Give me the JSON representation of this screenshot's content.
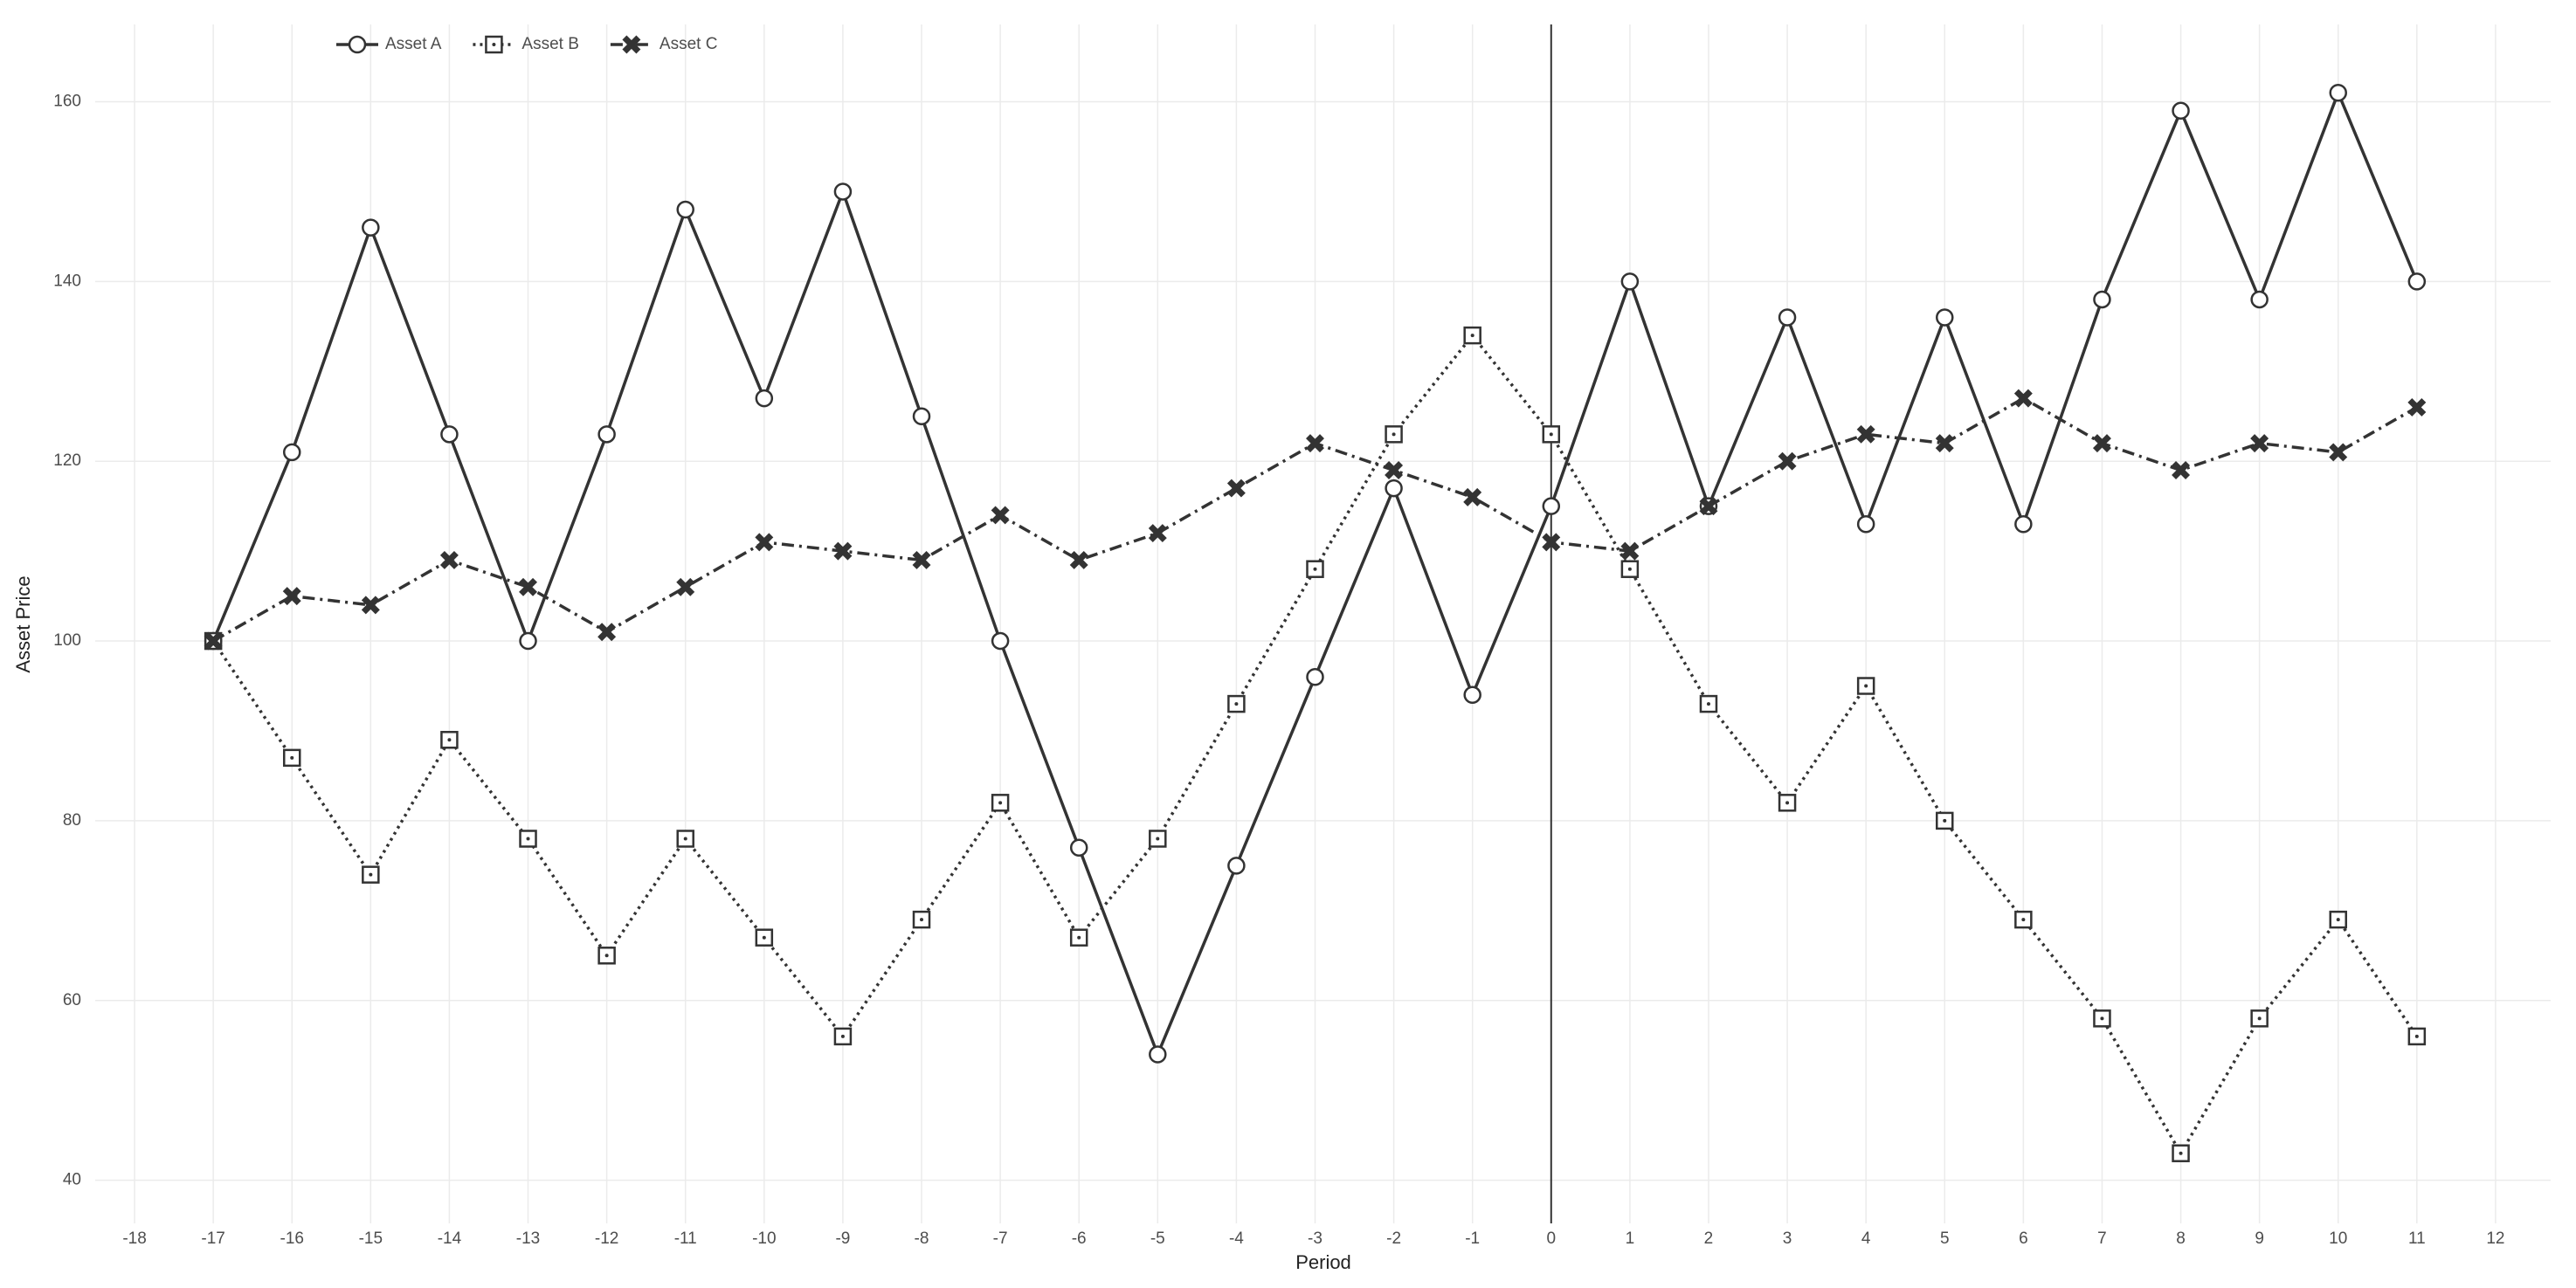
{
  "chart_data": {
    "type": "line",
    "x_label": "Period",
    "y_label": "Asset Price",
    "x": [
      -17,
      -16,
      -15,
      -14,
      -13,
      -12,
      -11,
      -10,
      -9,
      -8,
      -7,
      -6,
      -5,
      -4,
      -3,
      -2,
      -1,
      0,
      1,
      2,
      3,
      4,
      5,
      6,
      7,
      8,
      9,
      10,
      11
    ],
    "series": [
      {
        "name": "Asset A",
        "color": "#333333",
        "line_style": "solid",
        "marker": "circle",
        "values": [
          100,
          121,
          146,
          123,
          100,
          123,
          148,
          127,
          150,
          125,
          100,
          77,
          54,
          75,
          96,
          117,
          94,
          115,
          140,
          115,
          136,
          113,
          136,
          113,
          138,
          159,
          138,
          161,
          140
        ]
      },
      {
        "name": "Asset B",
        "color": "#333333",
        "line_style": "dotted",
        "marker": "square",
        "values": [
          100,
          87,
          74,
          89,
          78,
          65,
          78,
          67,
          56,
          69,
          82,
          67,
          78,
          93,
          108,
          123,
          134,
          123,
          108,
          93,
          82,
          95,
          80,
          69,
          58,
          43,
          58,
          69,
          56
        ]
      },
      {
        "name": "Asset C",
        "color": "#333333",
        "line_style": "dashdot",
        "marker": "x",
        "values": [
          100,
          105,
          104,
          109,
          106,
          101,
          106,
          111,
          110,
          109,
          114,
          109,
          112,
          117,
          122,
          119,
          116,
          111,
          110,
          115,
          120,
          123,
          122,
          127,
          122,
          119,
          122,
          121,
          126
        ]
      }
    ],
    "xlim": [
      -18.5,
      12.7
    ],
    "ylim": [
      35.2,
      168.6
    ],
    "xticks": [
      -18,
      -17,
      -16,
      -15,
      -14,
      -13,
      -12,
      -11,
      -10,
      -9,
      -8,
      -7,
      -6,
      -5,
      -4,
      -3,
      -2,
      -1,
      0,
      1,
      2,
      3,
      4,
      5,
      6,
      7,
      8,
      9,
      10,
      11,
      12
    ],
    "yticks": [
      40,
      60,
      80,
      100,
      120,
      140,
      160
    ],
    "vline": 0,
    "grid": true,
    "legend": "top-left"
  }
}
